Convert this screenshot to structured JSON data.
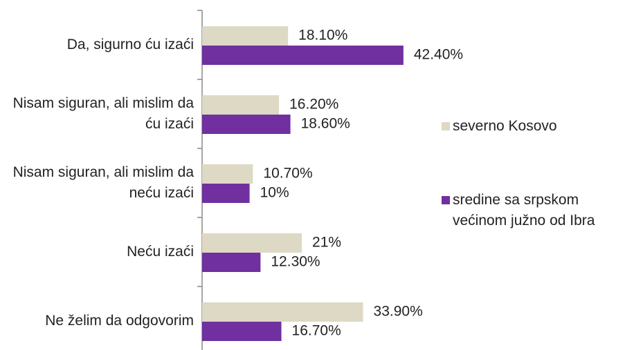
{
  "chart_data": {
    "type": "hbar",
    "categories": [
      "Da, sigurno ću izaći",
      "Nisam siguran, ali mislim da ću izaći",
      "Nisam siguran, ali mislim da neću izaći",
      "Neću izaći",
      "Ne želim da odgovorim"
    ],
    "series": [
      {
        "name": "severno Kosovo",
        "color": "#ddd9c4",
        "values": [
          18.1,
          16.2,
          10.7,
          21,
          33.9
        ],
        "value_labels": [
          "18.10%",
          "16.20%",
          "10.70%",
          "21%",
          "33.90%"
        ]
      },
      {
        "name": "sredine sa srpskom većinom južno od Ibra",
        "color": "#7030a0",
        "values": [
          42.4,
          18.6,
          10,
          12.3,
          16.7
        ],
        "value_labels": [
          "42.40%",
          "18.60%",
          "10%",
          "12.30%",
          "16.70%"
        ]
      }
    ],
    "xlim": [
      0,
      50
    ]
  }
}
